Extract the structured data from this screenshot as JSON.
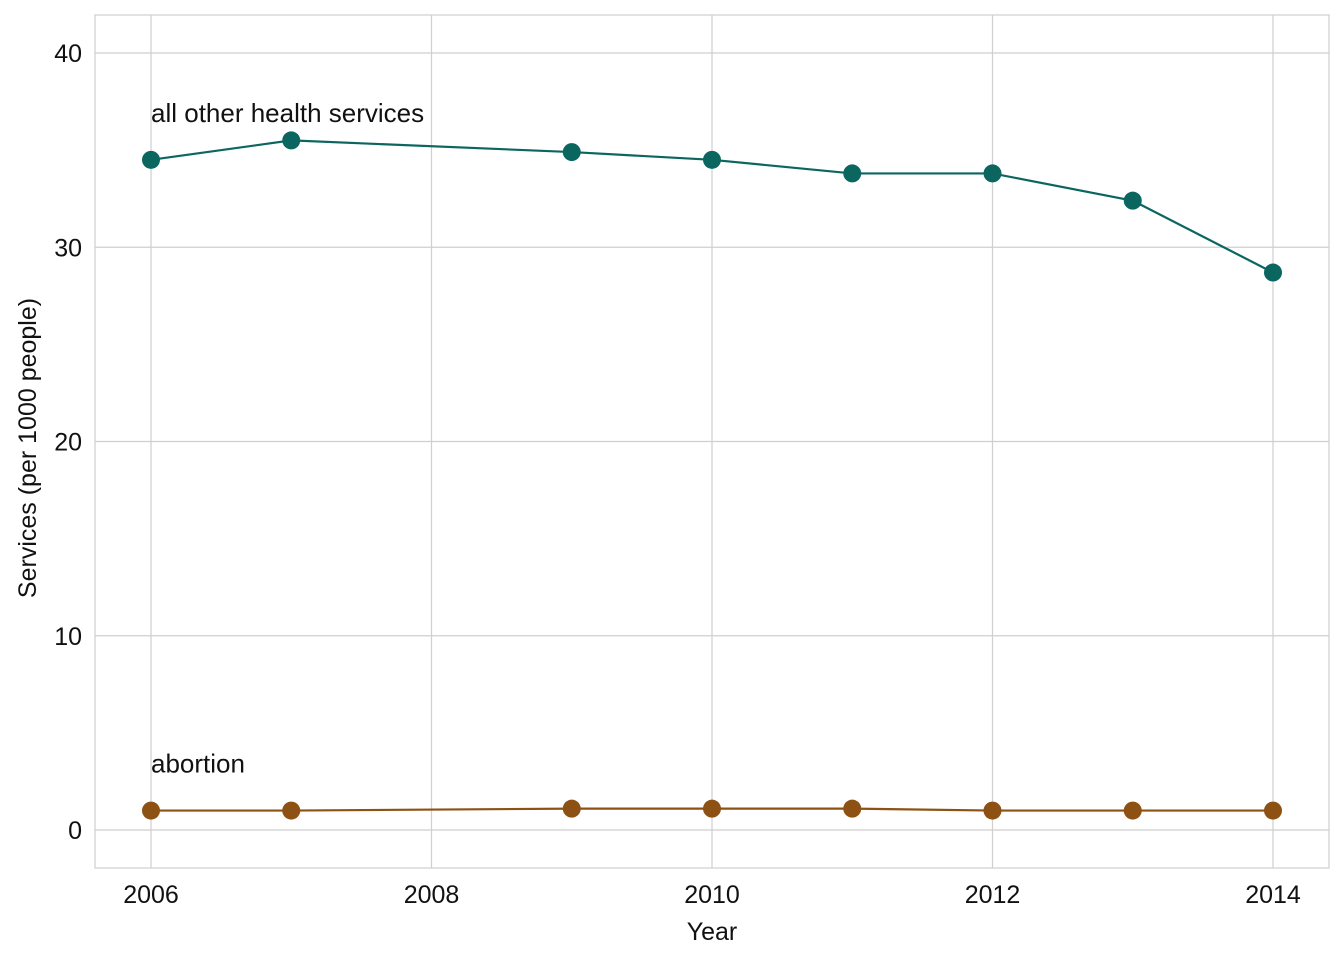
{
  "chart_data": {
    "type": "line",
    "title": "",
    "xlabel": "Year",
    "ylabel": "Services (per 1000 people)",
    "xlim": [
      2006,
      2014
    ],
    "ylim": [
      0,
      40
    ],
    "x_ticks": [
      2006,
      2008,
      2010,
      2012,
      2014
    ],
    "y_ticks": [
      0,
      10,
      20,
      30,
      40
    ],
    "grid": true,
    "legend": "none",
    "x": [
      2006,
      2007,
      2009,
      2010,
      2011,
      2012,
      2013,
      2014
    ],
    "series": [
      {
        "label": "all other health services",
        "color": "#0b6660",
        "values": [
          34.5,
          35.5,
          34.9,
          34.5,
          33.8,
          33.8,
          32.4,
          28.7
        ]
      },
      {
        "label": "abortion",
        "color": "#8c5113",
        "values": [
          1.0,
          1.0,
          1.1,
          1.1,
          1.1,
          1.0,
          1.0,
          1.0
        ]
      }
    ]
  }
}
